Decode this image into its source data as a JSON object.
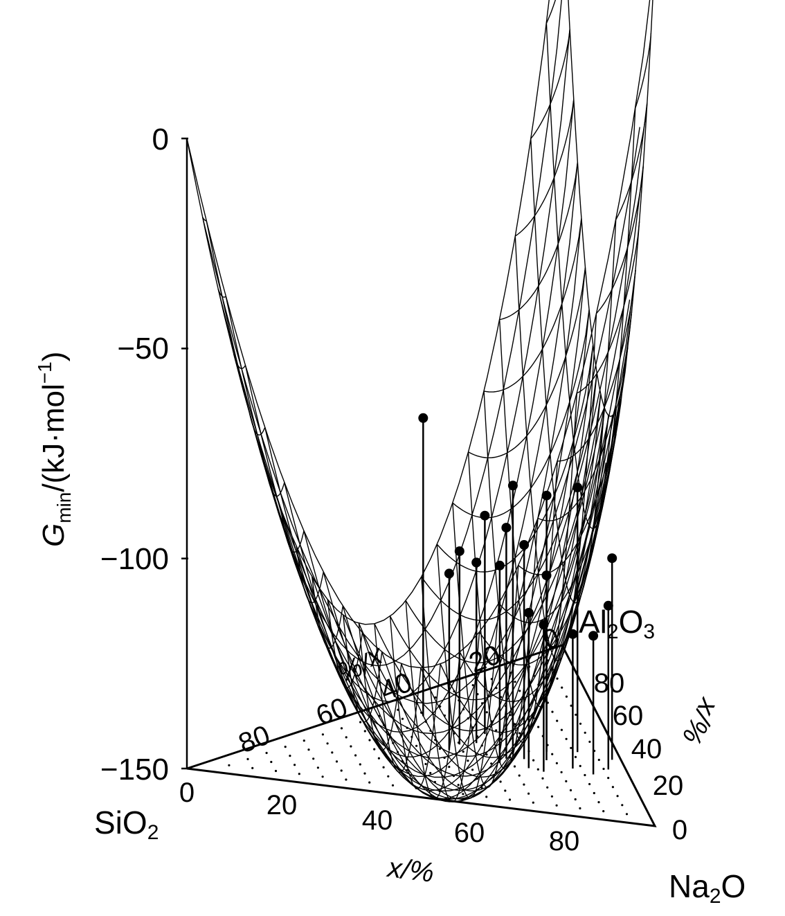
{
  "chart_data": {
    "type": "surface-3d",
    "title": "",
    "z_axis": {
      "label_main": "G",
      "label_sub": "min",
      "label_unit": "/(kJ·mol",
      "label_exp": "−1",
      "label_close": ")",
      "ticks": [
        "0",
        "−50",
        "−100",
        "−150"
      ],
      "tick_values": [
        0,
        -50,
        -100,
        -150
      ],
      "range": [
        -150,
        0
      ]
    },
    "components": {
      "origin": "SiO",
      "origin_sub": "2",
      "right": "Na",
      "right_sub": "2",
      "right_tail": "O",
      "top": "Al",
      "top_sub1": "2",
      "top_mid": "O",
      "top_sub2": "3"
    },
    "axes": {
      "front": {
        "label": "x/%",
        "ticks": [
          "0",
          "20",
          "40",
          "60",
          "80"
        ]
      },
      "left": {
        "label": "x/%",
        "ticks": [
          "80",
          "60",
          "40",
          "20",
          "0"
        ]
      },
      "right": {
        "label": "x/%",
        "ticks": [
          "80",
          "60",
          "40",
          "20",
          "0"
        ]
      }
    },
    "surface": {
      "grid": true,
      "min_value_approx": -121,
      "corner_values_approx": [
        0,
        57,
        35
      ]
    },
    "data_points": [
      {
        "z": -79
      },
      {
        "z": -98
      },
      {
        "z": -104
      },
      {
        "z": -107
      },
      {
        "z": -108
      },
      {
        "z": -86
      },
      {
        "z": -89
      },
      {
        "z": -95
      },
      {
        "z": -99
      },
      {
        "z": -103
      },
      {
        "z": -113
      },
      {
        "z": -118
      },
      {
        "z": -87
      },
      {
        "z": -106
      },
      {
        "z": -115
      },
      {
        "z": -102
      },
      {
        "z": -111
      },
      {
        "z": -117
      }
    ]
  }
}
